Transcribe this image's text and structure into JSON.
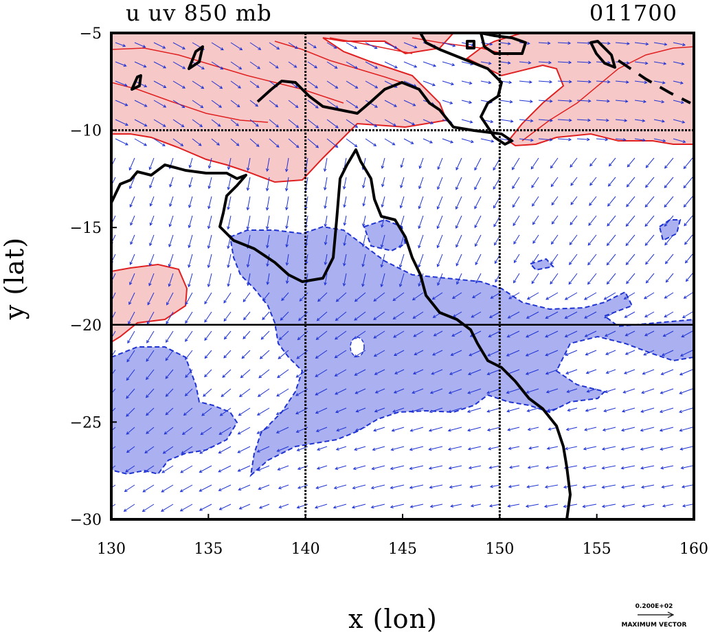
{
  "header": {
    "title": "u uv 850 mb",
    "time_label": "011700"
  },
  "axes": {
    "xlabel": "x (lon)",
    "ylabel": "y (lat)",
    "xlim": [
      130,
      160
    ],
    "ylim": [
      -30,
      -5
    ],
    "x_ticks": [
      130,
      135,
      140,
      145,
      150,
      155,
      160
    ],
    "y_ticks": [
      -5,
      -10,
      -15,
      -20,
      -25,
      -30
    ],
    "x_tick_labels": [
      "130",
      "135",
      "140",
      "145",
      "150",
      "155",
      "160"
    ],
    "y_tick_labels": [
      "−5",
      "−10",
      "−15",
      "−20",
      "−25",
      "−30"
    ],
    "grid_lines_lon": [
      140,
      150
    ],
    "grid_lines_lat": [
      -10,
      -20
    ]
  },
  "vector_key": {
    "value_label": "0.200E+02",
    "caption": "MAXIMUM VECTOR"
  },
  "colors": {
    "positive_fill": "#f7c8c8",
    "positive_line": "#e02020",
    "negative_fill": "#aab0f0",
    "negative_line": "#1e32d2",
    "vector": "#1e32d2",
    "coastline": "#000000"
  }
}
